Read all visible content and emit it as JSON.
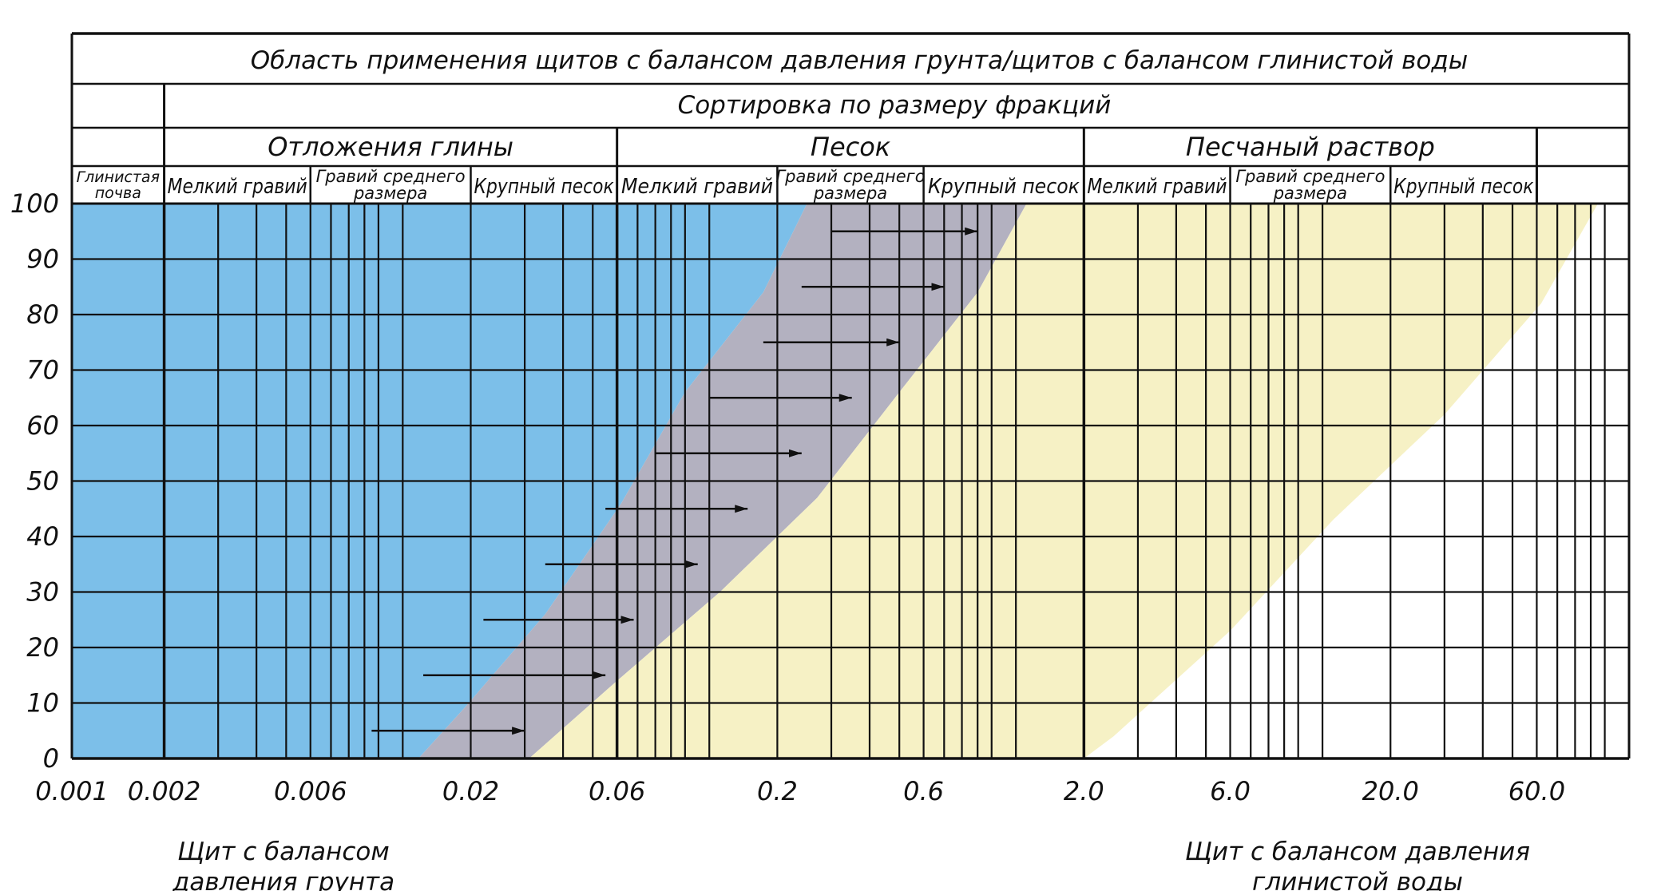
{
  "chart_data": {
    "type": "area",
    "title": "Область применения щитов с балансом давления грунта/щитов с балансом глинистой воды",
    "subtitle": "Сортировка по размеру фракций",
    "groups": [
      {
        "label": "",
        "from": 0.001,
        "to": 0.002
      },
      {
        "label": "Отложения глины",
        "from": 0.002,
        "to": 0.06
      },
      {
        "label": "Песок",
        "from": 0.06,
        "to": 2.0
      },
      {
        "label": "Песчаный раствор",
        "from": 2.0,
        "to": 60.0
      },
      {
        "label": "",
        "from": 60.0,
        "to": 120.0
      }
    ],
    "subcategories": [
      {
        "label": "Глинистая почва",
        "from": 0.001,
        "to": 0.002
      },
      {
        "label": "Мелкий гравий",
        "from": 0.002,
        "to": 0.006
      },
      {
        "label": "Гравий среднего размера",
        "from": 0.006,
        "to": 0.02
      },
      {
        "label": "Крупный песок",
        "from": 0.02,
        "to": 0.06
      },
      {
        "label": "Мелкий гравий",
        "from": 0.06,
        "to": 0.2
      },
      {
        "label": "Гравий среднего размера",
        "from": 0.2,
        "to": 0.6
      },
      {
        "label": "Крупный песок",
        "from": 0.6,
        "to": 2.0
      },
      {
        "label": "Мелкий гравий",
        "from": 2.0,
        "to": 6.0
      },
      {
        "label": "Гравий среднего размера",
        "from": 6.0,
        "to": 20.0
      },
      {
        "label": "Крупный песок",
        "from": 20.0,
        "to": 60.0
      }
    ],
    "x_scale": "log",
    "xlim": [
      0.001,
      120
    ],
    "ylim": [
      0,
      100
    ],
    "x_ticks": [
      "0.001",
      "0.002",
      "0.006",
      "0.02",
      "0.06",
      "0.2",
      "0.6",
      "2.0",
      "6.0",
      "20.0",
      "60.0"
    ],
    "y_ticks": [
      "0",
      "10",
      "20",
      "30",
      "40",
      "50",
      "60",
      "70",
      "80",
      "90",
      "100"
    ],
    "y_gridlines": [
      0,
      10,
      20,
      30,
      40,
      50,
      60,
      70,
      80,
      90,
      100
    ],
    "x_gridlines": [
      0.002,
      0.003,
      0.004,
      0.005,
      0.006,
      0.007,
      0.008,
      0.009,
      0.01,
      0.012,
      0.02,
      0.03,
      0.04,
      0.05,
      0.06,
      0.07,
      0.08,
      0.09,
      0.1,
      0.12,
      0.2,
      0.3,
      0.4,
      0.5,
      0.6,
      0.7,
      0.8,
      0.9,
      1.0,
      1.2,
      2.0,
      3.0,
      4.0,
      5.0,
      6.0,
      7.0,
      8.0,
      9.0,
      10.0,
      12.0,
      20.0,
      30.0,
      40.0,
      50.0,
      60.0,
      70.0,
      80.0,
      90.0,
      100.0
    ],
    "x_major_gridlines": [
      0.002,
      0.06,
      2.0
    ],
    "regions": [
      {
        "name": "blue",
        "color": "#7cbfe9",
        "points": [
          [
            0.001,
            0
          ],
          [
            0.001,
            100
          ],
          [
            0.25,
            100
          ],
          [
            0.18,
            84
          ],
          [
            0.1,
            66
          ],
          [
            0.062,
            46
          ],
          [
            0.035,
            26
          ],
          [
            0.019,
            9
          ],
          [
            0.0135,
            0
          ]
        ]
      },
      {
        "name": "gray",
        "color": "#b3b1c0",
        "points": [
          [
            0.0135,
            0
          ],
          [
            0.019,
            9
          ],
          [
            0.035,
            26
          ],
          [
            0.062,
            46
          ],
          [
            0.1,
            66
          ],
          [
            0.18,
            84
          ],
          [
            0.25,
            100
          ],
          [
            1.3,
            100
          ],
          [
            0.9,
            84
          ],
          [
            0.5,
            66
          ],
          [
            0.27,
            47
          ],
          [
            0.13,
            30
          ],
          [
            0.06,
            14
          ],
          [
            0.031,
            0
          ]
        ]
      },
      {
        "name": "yellow",
        "color": "#f6f1c5",
        "points": [
          [
            0.0088,
            0
          ],
          [
            0.031,
            0
          ],
          [
            0.06,
            14
          ],
          [
            0.13,
            30
          ],
          [
            0.27,
            47
          ],
          [
            0.5,
            66
          ],
          [
            0.9,
            84
          ],
          [
            1.3,
            100
          ],
          [
            2.0,
            100
          ],
          [
            2.0,
            0
          ]
        ]
      },
      {
        "name": "yellow-right",
        "color": "#f6f1c5",
        "points": [
          [
            2.0,
            0
          ],
          [
            2.0,
            100
          ],
          [
            95,
            100
          ],
          [
            62,
            82
          ],
          [
            30,
            62
          ],
          [
            13,
            43
          ],
          [
            6,
            23
          ],
          [
            2.5,
            4
          ],
          [
            2.0,
            0
          ]
        ]
      }
    ],
    "arrows": [
      {
        "y": 5,
        "from": 0.0095,
        "to": 0.03
      },
      {
        "y": 15,
        "from": 0.014,
        "to": 0.055
      },
      {
        "y": 25,
        "from": 0.022,
        "to": 0.068
      },
      {
        "y": 35,
        "from": 0.035,
        "to": 0.11
      },
      {
        "y": 45,
        "from": 0.055,
        "to": 0.16
      },
      {
        "y": 55,
        "from": 0.08,
        "to": 0.24
      },
      {
        "y": 65,
        "from": 0.12,
        "to": 0.35
      },
      {
        "y": 75,
        "from": 0.18,
        "to": 0.5
      },
      {
        "y": 85,
        "from": 0.24,
        "to": 0.7
      },
      {
        "y": 95,
        "from": 0.3,
        "to": 0.9
      }
    ],
    "annotations": [
      "Щит с балансом давления грунта",
      "Щит с балансом давления глинистой воды"
    ]
  },
  "annotation_left": [
    "Щит с балансом",
    "давления грунта"
  ],
  "annotation_right": [
    "Щит с балансом давления",
    "глинистой воды"
  ],
  "colors": {
    "blue": "#7cbfe9",
    "gray": "#b3b1c0",
    "yellow": "#f6f1c5",
    "grid": "#111111"
  }
}
